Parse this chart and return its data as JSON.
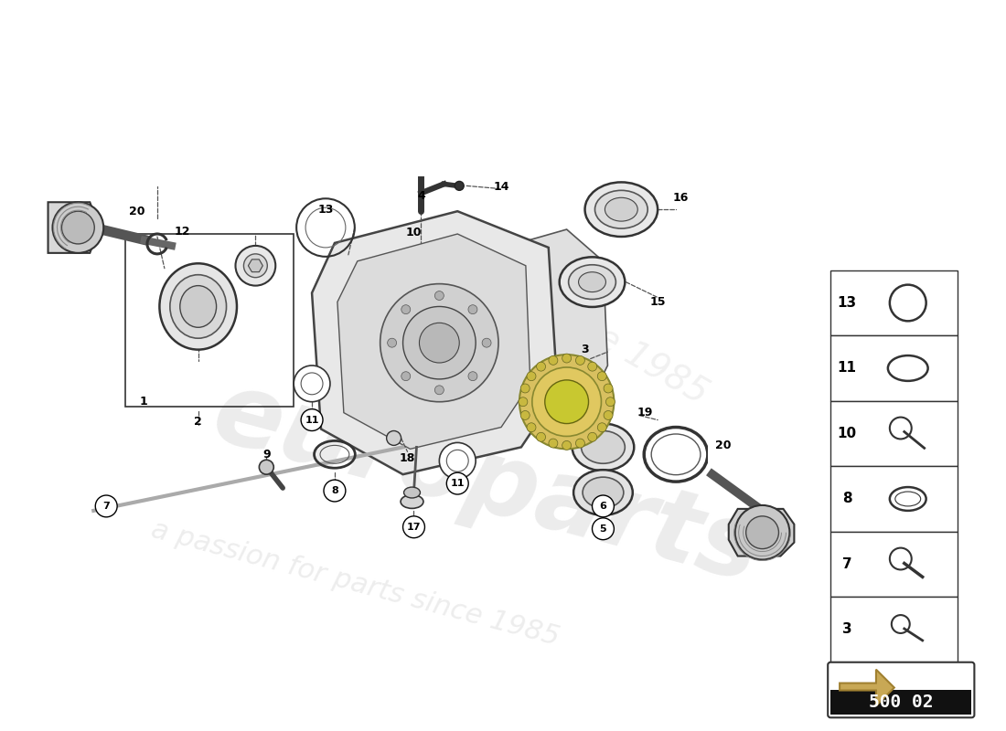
{
  "bg_color": "#ffffff",
  "watermark_text1": "europarts",
  "watermark_text2": "a passion for parts since 1985",
  "part_number": "500 02",
  "legend_nums": [
    "13",
    "11",
    "10",
    "8",
    "7",
    "3"
  ]
}
